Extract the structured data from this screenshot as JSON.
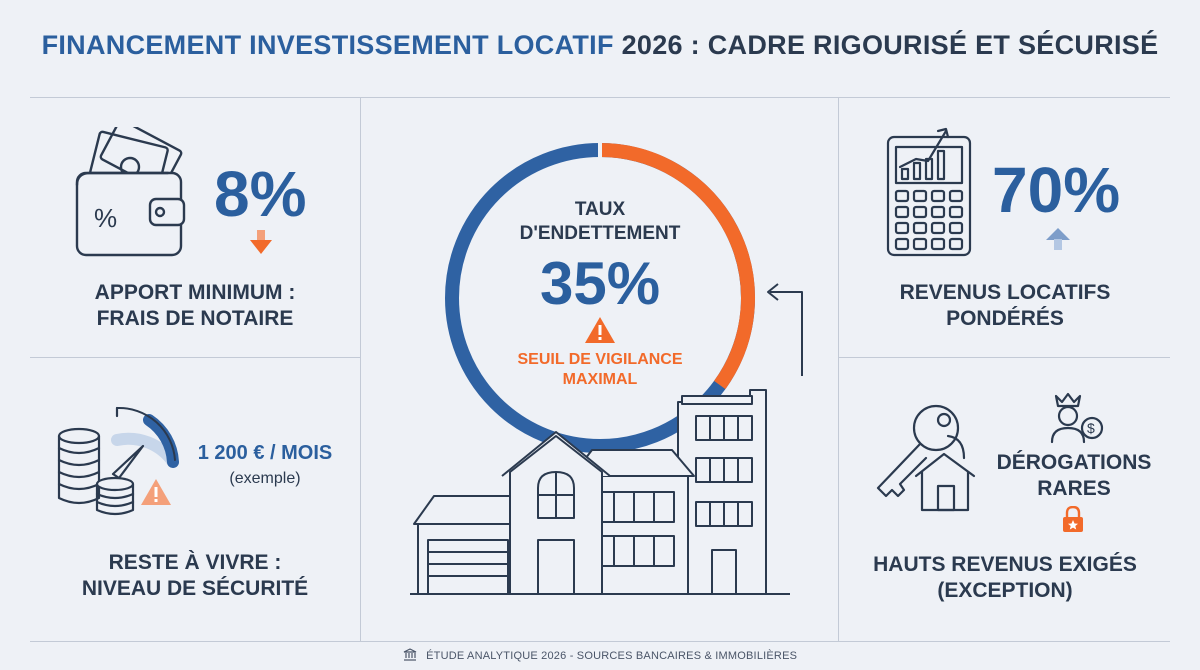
{
  "header": {
    "title_part1": "FINANCEMENT INVESTISSEMENT LOCATIF",
    "title_part2": "2026 : CADRE RIGOURISÉ ET SÉCURISÉ"
  },
  "apport": {
    "value": "8%",
    "label_line1": "APPORT MINIMUM :",
    "label_line2": "FRAIS DE NOTAIRE",
    "icon": "wallet-icon",
    "arrow": "arrow-down-icon"
  },
  "reste_a_vivre": {
    "amount": "1 200 € / MOIS",
    "note": "(exemple)",
    "label_line1": "RESTE À VIVRE :",
    "label_line2": "NIVEAU DE SÉCURITÉ",
    "icon": "coins-gauge-icon"
  },
  "center": {
    "label_line1": "TAUX",
    "label_line2": "D'ENDETTEMENT",
    "value": "35%",
    "warning_line1": "SEUIL DE VIGILANCE",
    "warning_line2": "MAXIMAL",
    "gauge_fraction": 0.35,
    "colors": {
      "blue": "#2f62a3",
      "orange": "#f26a2a"
    }
  },
  "revenus": {
    "value": "70%",
    "label_line1": "REVENUS LOCATIFS",
    "label_line2": "PONDÉRÉS",
    "icon": "calculator-chart-icon",
    "arrow": "arrow-up-icon"
  },
  "derogations": {
    "label_line1": "DÉROGATIONS",
    "label_line2": "RARES",
    "bottom_line1": "HAUTS REVENUS EXIGÉS",
    "bottom_line2": "(EXCEPTION)",
    "icons": [
      "key-house-icon",
      "king-coin-icon",
      "lock-icon"
    ]
  },
  "footer": {
    "text": "ÉTUDE ANALYTIQUE 2026 - SOURCES BANCAIRES & IMMOBILIÈRES",
    "icon": "bank-icon"
  }
}
